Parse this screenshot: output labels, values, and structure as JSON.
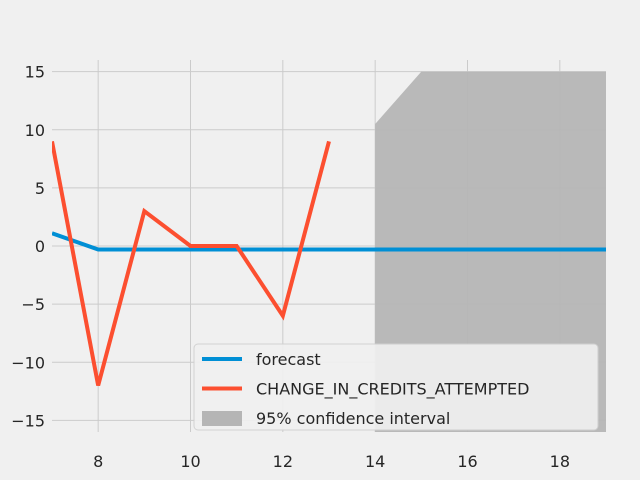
{
  "chart_data": {
    "type": "line",
    "title": "",
    "xlabel": "",
    "ylabel": "",
    "xlim": [
      7,
      19
    ],
    "ylim": [
      -16,
      16
    ],
    "xticks": [
      8,
      10,
      12,
      14,
      16,
      18
    ],
    "yticks": [
      -15,
      -10,
      -5,
      0,
      5,
      10,
      15
    ],
    "xtick_labels": [
      "8",
      "10",
      "12",
      "14",
      "16",
      "18"
    ],
    "ytick_labels": [
      "−15",
      "−10",
      "−5",
      "0",
      "5",
      "10",
      "15"
    ],
    "grid": true,
    "legend_position": "lower-center",
    "series": [
      {
        "name": "forecast",
        "color": "#008fd5",
        "x": [
          7,
          8,
          9,
          10,
          11,
          12,
          13,
          14,
          15,
          16,
          17,
          18,
          19
        ],
        "y": [
          1.1,
          -0.3,
          -0.3,
          -0.3,
          -0.3,
          -0.3,
          -0.3,
          -0.3,
          -0.3,
          -0.3,
          -0.3,
          -0.3,
          -0.3
        ]
      },
      {
        "name": "CHANGE_IN_CREDITS_ATTEMPTED",
        "color": "#fc4f30",
        "x": [
          7,
          8,
          9,
          10,
          11,
          12,
          13
        ],
        "y": [
          9,
          -12,
          3,
          0,
          0,
          -6,
          9
        ]
      }
    ],
    "confidence_band": {
      "name": "95% confidence interval",
      "color": "#b5b5b5",
      "x": [
        14,
        15,
        19
      ],
      "upper": [
        10.5,
        15,
        15
      ],
      "lower": [
        -16,
        -16,
        -16
      ]
    }
  }
}
